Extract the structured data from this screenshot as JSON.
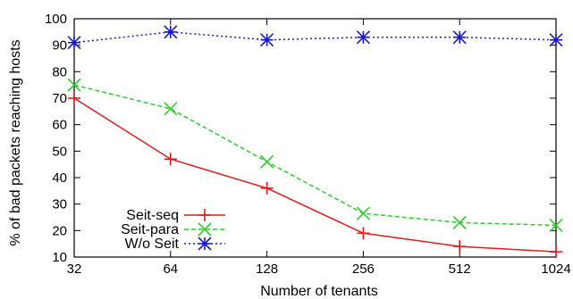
{
  "chart_data": {
    "type": "line",
    "categories": [
      "32",
      "64",
      "128",
      "256",
      "512",
      "1024"
    ],
    "xlabel": "Number of tenants",
    "ylabel": "% of bad packets reaching hosts",
    "ylim": [
      10,
      100
    ],
    "yticks": [
      "10",
      "20",
      "30",
      "40",
      "50",
      "60",
      "70",
      "80",
      "90",
      "100"
    ],
    "grid": false,
    "legend_position": "bottom-left",
    "series": [
      {
        "name": "Seit-seq",
        "values": [
          70,
          47,
          36,
          19,
          14,
          12
        ],
        "color": "#e41a1c",
        "marker": "plus",
        "dash": "solid"
      },
      {
        "name": "Seit-para",
        "values": [
          75,
          66,
          46,
          26.5,
          23,
          22
        ],
        "color": "#2ecc2e",
        "marker": "x",
        "dash": "dashed"
      },
      {
        "name": "W/o Seit",
        "values": [
          91,
          95,
          92,
          93,
          93,
          92
        ],
        "color": "#1a1acc",
        "marker": "star",
        "dash": "dotted"
      }
    ]
  }
}
